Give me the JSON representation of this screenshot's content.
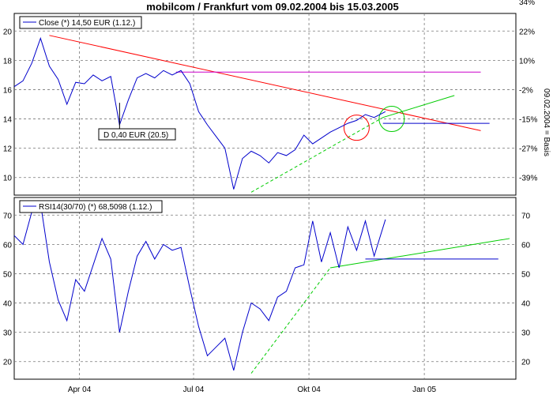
{
  "chart_data": [
    {
      "type": "line",
      "title": "mobilcom / Frankfurt vom 09.02.2004 bis 15.03.2005",
      "legend_label": "Close (*) 14,50 EUR (1.12.)",
      "y2label": "09.02.2004 = Basis",
      "ylim": [
        8.8,
        21.2
      ],
      "yticks": [
        10,
        12,
        14,
        16,
        18,
        20
      ],
      "y2_ticks": [
        "34%",
        "22%",
        "10%",
        "-2%",
        "-15%",
        "-27%",
        "-39%"
      ],
      "y2_values": [
        22,
        20,
        18,
        16,
        14,
        12,
        10
      ],
      "grid": true,
      "legend_position": "top-left",
      "annotation": "D 0,40 EUR (20.5)",
      "series": [
        {
          "color": "#0000cc",
          "x": [
            "2004-02-09",
            "2004-02-16",
            "2004-02-23",
            "2004-03-01",
            "2004-03-08",
            "2004-03-15",
            "2004-03-22",
            "2004-03-29",
            "2004-04-05",
            "2004-04-12",
            "2004-04-19",
            "2004-04-26",
            "2004-05-03",
            "2004-05-10",
            "2004-05-17",
            "2004-05-24",
            "2004-05-31",
            "2004-06-07",
            "2004-06-14",
            "2004-06-21",
            "2004-06-28",
            "2004-07-05",
            "2004-07-12",
            "2004-07-19",
            "2004-07-26",
            "2004-08-02",
            "2004-08-09",
            "2004-08-16",
            "2004-08-23",
            "2004-08-30",
            "2004-09-06",
            "2004-09-13",
            "2004-09-20",
            "2004-09-27",
            "2004-10-04",
            "2004-10-11",
            "2004-10-18",
            "2004-10-25",
            "2004-11-01",
            "2004-11-08",
            "2004-11-15",
            "2004-11-22",
            "2004-12-01"
          ],
          "values": [
            16.2,
            16.6,
            17.8,
            19.5,
            17.6,
            16.7,
            15.0,
            16.5,
            16.4,
            17.0,
            16.6,
            16.9,
            13.6,
            15.3,
            16.8,
            17.1,
            16.8,
            17.3,
            17.0,
            17.3,
            16.4,
            14.5,
            13.6,
            12.8,
            12.0,
            9.2,
            11.3,
            11.8,
            11.5,
            11.0,
            11.7,
            11.5,
            11.9,
            12.9,
            12.3,
            12.7,
            13.1,
            13.4,
            13.7,
            13.9,
            14.3,
            14.1,
            14.5
          ]
        }
      ],
      "lines": [
        {
          "color": "#ff0000",
          "x": [
            "2004-03-08",
            "2005-02-15"
          ],
          "y": [
            19.7,
            13.2
          ]
        },
        {
          "color": "#cc00cc",
          "x": [
            "2004-06-17",
            "2005-02-15"
          ],
          "y": [
            17.2,
            17.2
          ]
        },
        {
          "color": "#00cc00",
          "style": "dashed",
          "x": [
            "2004-08-16",
            "2004-11-29"
          ],
          "y": [
            9.0,
            14.1
          ]
        },
        {
          "color": "#00cc00",
          "x": [
            "2004-11-29",
            "2005-01-25"
          ],
          "y": [
            14.1,
            15.6
          ]
        },
        {
          "color": "#0000cc",
          "x": [
            "2004-11-29",
            "2005-02-22"
          ],
          "y": [
            13.7,
            13.7
          ]
        }
      ],
      "circles": [
        {
          "color": "#ff0000",
          "x": "2004-11-08",
          "y": 13.4
        },
        {
          "color": "#00cc00",
          "x": "2004-12-06",
          "y": 14.0
        }
      ]
    },
    {
      "type": "line",
      "legend_label": "RSI14(30/70) (*) 68,5098 (1.12.)",
      "ylim": [
        14,
        76
      ],
      "yticks": [
        20,
        30,
        40,
        50,
        60,
        70
      ],
      "grid": true,
      "legend_position": "top-left",
      "series": [
        {
          "color": "#0000cc",
          "x": [
            "2004-02-09",
            "2004-02-16",
            "2004-02-23",
            "2004-03-01",
            "2004-03-08",
            "2004-03-15",
            "2004-03-22",
            "2004-03-29",
            "2004-04-05",
            "2004-04-12",
            "2004-04-19",
            "2004-04-26",
            "2004-05-03",
            "2004-05-10",
            "2004-05-17",
            "2004-05-24",
            "2004-05-31",
            "2004-06-07",
            "2004-06-14",
            "2004-06-21",
            "2004-06-28",
            "2004-07-05",
            "2004-07-12",
            "2004-07-19",
            "2004-07-26",
            "2004-08-02",
            "2004-08-09",
            "2004-08-16",
            "2004-08-23",
            "2004-08-30",
            "2004-09-06",
            "2004-09-13",
            "2004-09-20",
            "2004-09-27",
            "2004-10-04",
            "2004-10-11",
            "2004-10-18",
            "2004-10-25",
            "2004-11-01",
            "2004-11-08",
            "2004-11-15",
            "2004-11-22",
            "2004-12-01"
          ],
          "values": [
            63,
            60,
            71,
            74,
            54,
            41,
            34,
            48,
            44,
            53,
            62,
            55,
            30,
            44,
            56,
            61,
            55,
            60,
            58,
            59,
            45,
            32,
            22,
            25,
            28,
            17,
            30,
            40,
            38,
            34,
            42,
            44,
            52,
            53,
            68,
            54,
            64,
            52,
            66,
            58,
            68,
            56,
            68.5
          ]
        }
      ],
      "lines": [
        {
          "color": "#00cc00",
          "style": "dashed",
          "x": [
            "2004-08-16",
            "2004-10-18"
          ],
          "y": [
            16,
            52
          ]
        },
        {
          "color": "#00cc00",
          "x": [
            "2004-10-18",
            "2005-03-10"
          ],
          "y": [
            52,
            62
          ]
        },
        {
          "color": "#0000cc",
          "x": [
            "2004-11-15",
            "2005-03-01"
          ],
          "y": [
            55,
            55
          ]
        }
      ]
    }
  ],
  "x_ticks": [
    {
      "label": "Apr 04",
      "date": "2004-04-01"
    },
    {
      "label": "Jul 04",
      "date": "2004-07-01"
    },
    {
      "label": "Okt 04",
      "date": "2004-10-01"
    },
    {
      "label": "Jan 05",
      "date": "2005-01-01"
    }
  ],
  "x_range": [
    "2004-02-09",
    "2005-03-15"
  ]
}
